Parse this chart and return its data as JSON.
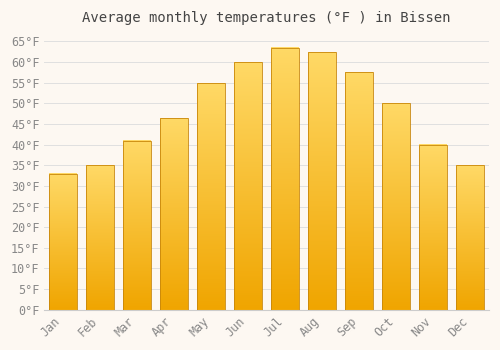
{
  "title": "Average monthly temperatures (°F ) in Bissen",
  "months": [
    "Jan",
    "Feb",
    "Mar",
    "Apr",
    "May",
    "Jun",
    "Jul",
    "Aug",
    "Sep",
    "Oct",
    "Nov",
    "Dec"
  ],
  "values": [
    33,
    35,
    41,
    46.5,
    55,
    60,
    63.5,
    62.5,
    57.5,
    50,
    40,
    35
  ],
  "bar_color_top": "#FFD966",
  "bar_color_bottom": "#F0A500",
  "bar_edge_color": "#C8860A",
  "background_color": "#FDF8F2",
  "grid_color": "#E0E0E0",
  "tick_label_color": "#888888",
  "title_color": "#444444",
  "ylim": [
    0,
    67
  ],
  "yticks": [
    0,
    5,
    10,
    15,
    20,
    25,
    30,
    35,
    40,
    45,
    50,
    55,
    60,
    65
  ],
  "title_fontsize": 10,
  "tick_fontsize": 8.5,
  "bar_width": 0.75
}
